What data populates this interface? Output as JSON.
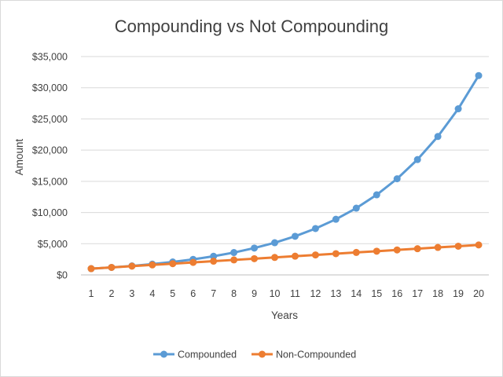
{
  "chart_data": {
    "type": "line",
    "title": "Compounding vs Not Compounding",
    "xlabel": "Years",
    "ylabel": "Amount",
    "x": [
      1,
      2,
      3,
      4,
      5,
      6,
      7,
      8,
      9,
      10,
      11,
      12,
      13,
      14,
      15,
      16,
      17,
      18,
      19,
      20
    ],
    "ylim": [
      0,
      35000
    ],
    "yticks": [
      0,
      5000,
      10000,
      15000,
      20000,
      25000,
      30000,
      35000
    ],
    "ytick_labels": [
      "$0",
      "$5,000",
      "$10,000",
      "$15,000",
      "$20,000",
      "$25,000",
      "$30,000",
      "$35,000"
    ],
    "grid": true,
    "legend": "bottom",
    "series": [
      {
        "name": "Compounded",
        "color": "#5b9bd5",
        "values": [
          1000,
          1200,
          1440,
          1728,
          2074,
          2488,
          2986,
          3583,
          4300,
          5160,
          6192,
          7430,
          8916,
          10699,
          12839,
          15407,
          18488,
          22186,
          26623,
          31948
        ]
      },
      {
        "name": "Non-Compounded",
        "color": "#ed7d31",
        "values": [
          1000,
          1200,
          1400,
          1600,
          1800,
          2000,
          2200,
          2400,
          2600,
          2800,
          3000,
          3200,
          3400,
          3600,
          3800,
          4000,
          4200,
          4400,
          4600,
          4800
        ]
      }
    ]
  }
}
